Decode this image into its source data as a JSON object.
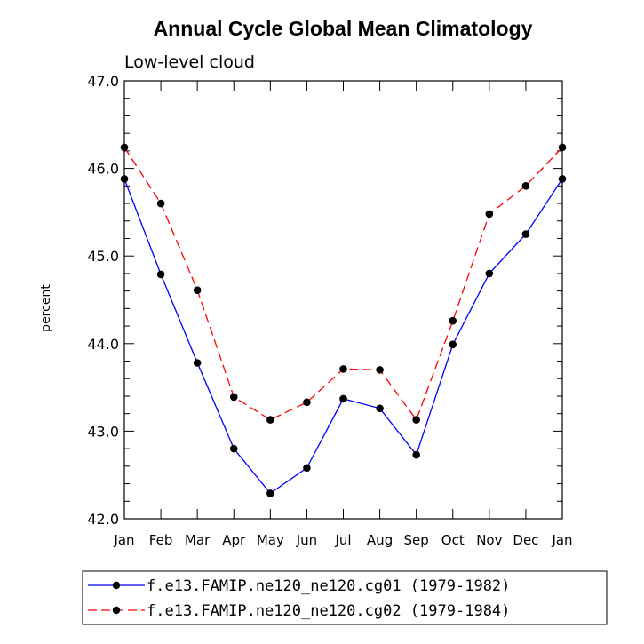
{
  "chart_data": {
    "type": "line",
    "title": "Annual Cycle Global Mean Climatology",
    "subtitle": "Low-level cloud",
    "xlabel": "",
    "ylabel": "percent",
    "categories": [
      "Jan",
      "Feb",
      "Mar",
      "Apr",
      "May",
      "Jun",
      "Jul",
      "Aug",
      "Sep",
      "Oct",
      "Nov",
      "Dec",
      "Jan"
    ],
    "ylim": [
      42.0,
      47.0
    ],
    "yticks": [
      "42.0",
      "43.0",
      "44.0",
      "45.0",
      "46.0",
      "47.0"
    ],
    "grid": false,
    "legend_position": "bottom",
    "series": [
      {
        "name": "f.e13.FAMIP.ne120_ne120.cg01 (1979-1982)",
        "color": "#0000ff",
        "dash": "solid",
        "values": [
          45.88,
          44.79,
          43.78,
          42.8,
          42.29,
          42.58,
          43.37,
          43.26,
          42.73,
          43.99,
          44.8,
          45.25,
          45.88
        ]
      },
      {
        "name": "f.e13.FAMIP.ne120_ne120.cg02 (1979-1984)",
        "color": "#ff0000",
        "dash": "dashed",
        "values": [
          46.24,
          45.6,
          44.61,
          43.39,
          43.13,
          43.33,
          43.71,
          43.7,
          43.13,
          44.26,
          45.48,
          45.8,
          46.24
        ]
      }
    ]
  }
}
